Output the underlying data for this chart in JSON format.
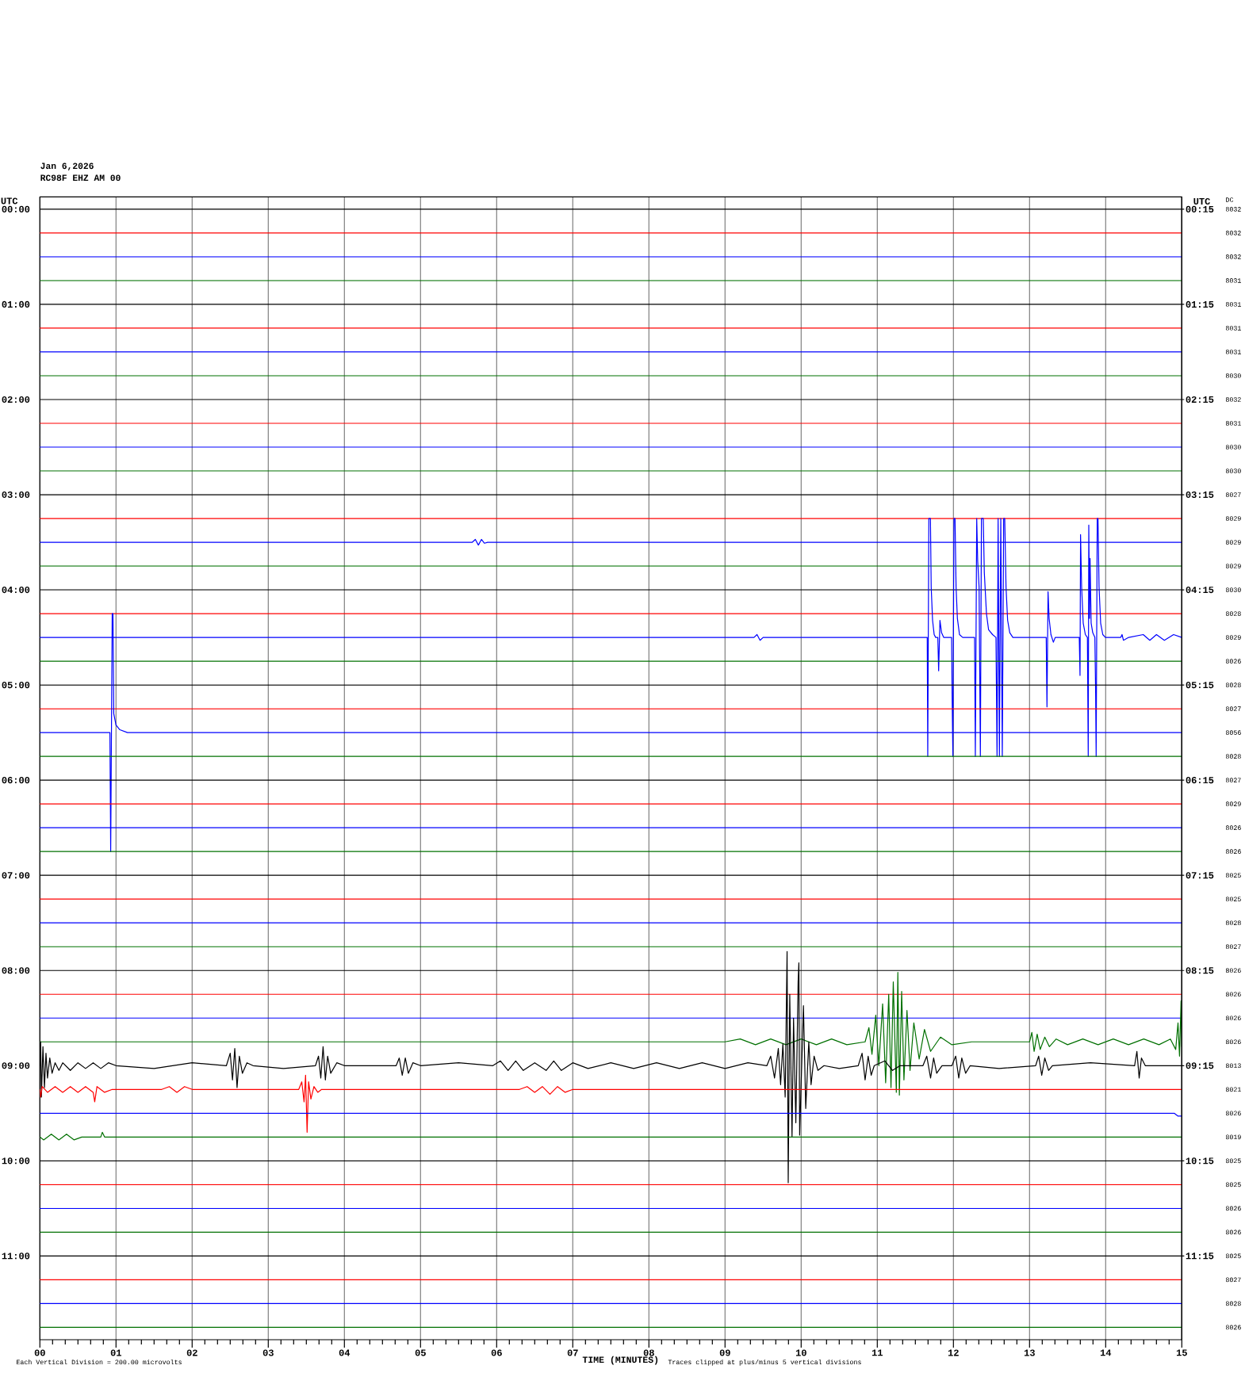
{
  "chart_data": {
    "type": "line",
    "title": "Jan 6,2026",
    "subtitle": "RC98F EHZ AM 00",
    "xlabel": "TIME (MINUTES)",
    "ylabel": "UTC",
    "y2label": "UTC",
    "annotations": [
      "Each Vertical Division = 200.00 microvolts",
      "Traces clipped at plus/minus 5 vertical divisions",
      "DC"
    ],
    "grid": "x",
    "xlim": [
      0,
      15
    ],
    "xticks": [
      {
        "value": 0,
        "label": "00"
      },
      {
        "value": 1,
        "label": "01"
      },
      {
        "value": 2,
        "label": "02"
      },
      {
        "value": 3,
        "label": "03"
      },
      {
        "value": 4,
        "label": "04"
      },
      {
        "value": 5,
        "label": "05"
      },
      {
        "value": 6,
        "label": "06"
      },
      {
        "value": 7,
        "label": "07"
      },
      {
        "value": 8,
        "label": "08"
      },
      {
        "value": 9,
        "label": "09"
      },
      {
        "value": 10,
        "label": "10"
      },
      {
        "value": 11,
        "label": "11"
      },
      {
        "value": 12,
        "label": "12"
      },
      {
        "value": 13,
        "label": "13"
      },
      {
        "value": 14,
        "label": "14"
      },
      {
        "value": 15,
        "label": "15"
      }
    ],
    "ylim": [
      11.88,
      -0.13
    ],
    "yticks": [
      {
        "value": 0,
        "label": "00:00"
      },
      {
        "value": 1,
        "label": "01:00"
      },
      {
        "value": 2,
        "label": "02:00"
      },
      {
        "value": 3,
        "label": "03:00"
      },
      {
        "value": 4,
        "label": "04:00"
      },
      {
        "value": 5,
        "label": "05:00"
      },
      {
        "value": 6,
        "label": "06:00"
      },
      {
        "value": 7,
        "label": "07:00"
      },
      {
        "value": 8,
        "label": "08:00"
      },
      {
        "value": 9,
        "label": "09:00"
      },
      {
        "value": 10,
        "label": "10:00"
      },
      {
        "value": 11,
        "label": "11:00"
      }
    ],
    "y2lim": [
      12.13,
      0.12
    ],
    "y2ticks": [
      {
        "value": 0.25,
        "label": "00:15"
      },
      {
        "value": 1.25,
        "label": "01:15"
      },
      {
        "value": 2.25,
        "label": "02:15"
      },
      {
        "value": 3.25,
        "label": "03:15"
      },
      {
        "value": 4.25,
        "label": "04:15"
      },
      {
        "value": 5.25,
        "label": "05:15"
      },
      {
        "value": 6.25,
        "label": "06:15"
      },
      {
        "value": 7.25,
        "label": "07:15"
      },
      {
        "value": 8.25,
        "label": "08:15"
      },
      {
        "value": 9.25,
        "label": "09:15"
      },
      {
        "value": 10.25,
        "label": "10:15"
      },
      {
        "value": 11.25,
        "label": "11:15"
      }
    ],
    "series": [
      {
        "name": "8032",
        "color": "#000000",
        "x": [
          0,
          15
        ],
        "values": [
          0,
          0
        ]
      },
      {
        "name": "8032",
        "color": "#ff0000",
        "x": [
          0,
          15
        ],
        "values": [
          0.25,
          0.25
        ]
      },
      {
        "name": "8032",
        "color": "#0000ff",
        "x": [
          0,
          15
        ],
        "values": [
          0.5,
          0.5
        ]
      },
      {
        "name": "8031",
        "color": "#007000",
        "x": [
          0,
          15
        ],
        "values": [
          0.75,
          0.75
        ]
      },
      {
        "name": "8031",
        "color": "#000000",
        "x": [
          0,
          15
        ],
        "values": [
          1,
          1
        ]
      },
      {
        "name": "8031",
        "color": "#ff0000",
        "x": [
          0,
          15
        ],
        "values": [
          1.25,
          1.25
        ]
      },
      {
        "name": "8031",
        "color": "#0000ff",
        "x": [
          0,
          15
        ],
        "values": [
          1.5,
          1.5
        ]
      },
      {
        "name": "8030",
        "color": "#007000",
        "x": [
          0,
          15
        ],
        "values": [
          1.75,
          1.75
        ]
      },
      {
        "name": "8032",
        "color": "#000000",
        "x": [
          0,
          15
        ],
        "values": [
          2,
          2
        ]
      },
      {
        "name": "8031",
        "color": "#ff0000",
        "x": [
          0,
          15
        ],
        "values": [
          2.25,
          2.25
        ]
      },
      {
        "name": "8030",
        "color": "#0000ff",
        "x": [
          0,
          15
        ],
        "values": [
          2.5,
          2.5
        ]
      },
      {
        "name": "8030",
        "color": "#007000",
        "x": [
          0,
          15
        ],
        "values": [
          2.75,
          2.75
        ]
      },
      {
        "name": "8027",
        "color": "#000000",
        "x": [
          0,
          15
        ],
        "values": [
          3,
          3
        ]
      },
      {
        "name": "8029",
        "color": "#ff0000",
        "x": [
          0,
          15
        ],
        "values": [
          3.25,
          3.25
        ]
      },
      {
        "name": "8029",
        "color": "#0000ff",
        "x": [
          0,
          5.68,
          5.72,
          5.76,
          5.8,
          5.84,
          5.88,
          15
        ],
        "values": [
          3.5,
          3.5,
          3.47,
          3.53,
          3.47,
          3.51,
          3.5,
          3.5
        ]
      },
      {
        "name": "8029",
        "color": "#007000",
        "x": [
          0,
          15
        ],
        "values": [
          3.75,
          3.75
        ]
      },
      {
        "name": "8030",
        "color": "#000000",
        "x": [
          0,
          15
        ],
        "values": [
          4,
          4
        ]
      },
      {
        "name": "8028",
        "color": "#ff0000",
        "x": [
          0,
          15
        ],
        "values": [
          4.25,
          4.25
        ]
      },
      {
        "name": "8029",
        "color": "#0000ff",
        "x": [
          0,
          9.38,
          9.42,
          9.46,
          9.5,
          11.656,
          11.663,
          11.677,
          11.698,
          11.708,
          11.726,
          11.747,
          11.767,
          11.795,
          11.806,
          11.823,
          11.844,
          11.872,
          11.976,
          11.983,
          11.993,
          12.007,
          12.021,
          12.035,
          12.052,
          12.08,
          12.122,
          12.278,
          12.288,
          12.306,
          12.319,
          12.337,
          12.354,
          12.368,
          12.392,
          12.406,
          12.434,
          12.462,
          12.514,
          12.559,
          12.573,
          12.587,
          12.604,
          12.622,
          12.642,
          12.66,
          12.674,
          12.691,
          12.712,
          12.74,
          12.781,
          12.844,
          13.219,
          13.229,
          13.243,
          13.257,
          13.281,
          13.313,
          13.337,
          13.653,
          13.663,
          13.67,
          13.684,
          13.705,
          13.733,
          13.76,
          13.771,
          13.778,
          13.788,
          13.795,
          13.809,
          13.83,
          13.858,
          13.868,
          13.875,
          13.889,
          13.899,
          13.913,
          13.934,
          13.962,
          13.997,
          14.198,
          14.215,
          14.233,
          14.302,
          14.493,
          14.58,
          14.667,
          14.771,
          14.892,
          15
        ],
        "values": [
          4.5,
          4.5,
          4.47,
          4.53,
          4.5,
          4.5,
          5.75,
          3.25,
          3.25,
          3.97,
          4.32,
          4.47,
          4.5,
          4.5,
          4.85,
          4.32,
          4.45,
          4.5,
          4.5,
          5.13,
          5.75,
          3.25,
          3.25,
          3.97,
          4.3,
          4.47,
          4.5,
          4.5,
          5.75,
          3.25,
          3.7,
          3.97,
          5.75,
          3.25,
          3.25,
          3.82,
          4.25,
          4.42,
          4.47,
          4.5,
          5.75,
          3.25,
          5.75,
          3.25,
          5.75,
          3.25,
          3.25,
          3.97,
          4.32,
          4.45,
          4.5,
          4.5,
          4.5,
          5.23,
          4.02,
          4.3,
          4.47,
          4.55,
          4.5,
          4.5,
          4.9,
          3.42,
          3.97,
          4.35,
          4.47,
          4.5,
          5.75,
          3.32,
          4.3,
          3.67,
          4.35,
          4.45,
          4.5,
          5.08,
          5.75,
          3.25,
          3.25,
          3.97,
          4.35,
          4.47,
          4.5,
          4.5,
          4.47,
          4.53,
          4.5,
          4.47,
          4.53,
          4.47,
          4.53,
          4.47,
          4.5
        ]
      },
      {
        "name": "8026",
        "color": "#007000",
        "x": [
          0,
          15
        ],
        "values": [
          4.75,
          4.75
        ]
      },
      {
        "name": "8028",
        "color": "#000000",
        "x": [
          0,
          15
        ],
        "values": [
          5,
          5
        ]
      },
      {
        "name": "8027",
        "color": "#ff0000",
        "x": [
          0,
          15
        ],
        "values": [
          5.25,
          5.25
        ]
      },
      {
        "name": "8056",
        "color": "#0000ff",
        "x": [
          0,
          0.92,
          0.93,
          0.95,
          0.96,
          0.97,
          1.0,
          1.05,
          1.15,
          15
        ],
        "values": [
          5.5,
          5.5,
          6.75,
          4.25,
          4.25,
          5.3,
          5.42,
          5.47,
          5.5,
          5.5
        ]
      },
      {
        "name": "8028",
        "color": "#007000",
        "x": [
          0,
          15
        ],
        "values": [
          5.75,
          5.75
        ]
      },
      {
        "name": "8027",
        "color": "#000000",
        "x": [
          0,
          15
        ],
        "values": [
          6,
          6
        ]
      },
      {
        "name": "8029",
        "color": "#ff0000",
        "x": [
          0,
          15
        ],
        "values": [
          6.25,
          6.25
        ]
      },
      {
        "name": "8026",
        "color": "#0000ff",
        "x": [
          0,
          15
        ],
        "values": [
          6.5,
          6.5
        ]
      },
      {
        "name": "8026",
        "color": "#007000",
        "x": [
          0,
          15
        ],
        "values": [
          6.75,
          6.75
        ]
      },
      {
        "name": "8025",
        "color": "#000000",
        "x": [
          0,
          15
        ],
        "values": [
          7,
          7
        ]
      },
      {
        "name": "8025",
        "color": "#ff0000",
        "x": [
          0,
          15
        ],
        "values": [
          7.25,
          7.25
        ]
      },
      {
        "name": "8028",
        "color": "#0000ff",
        "x": [
          0,
          15
        ],
        "values": [
          7.5,
          7.5
        ]
      },
      {
        "name": "8027",
        "color": "#007000",
        "x": [
          0,
          15
        ],
        "values": [
          7.75,
          7.75
        ]
      },
      {
        "name": "8026",
        "color": "#000000",
        "x": [
          0,
          15
        ],
        "values": [
          8,
          8
        ]
      },
      {
        "name": "8026",
        "color": "#ff0000",
        "x": [
          0,
          15
        ],
        "values": [
          8.25,
          8.25
        ]
      },
      {
        "name": "8026",
        "color": "#0000ff",
        "x": [
          0,
          15
        ],
        "values": [
          8.5,
          8.5
        ]
      },
      {
        "name": "8026",
        "color": "#007000",
        "x": [
          0,
          9.0,
          9.2,
          9.4,
          9.6,
          9.8,
          10.0,
          10.2,
          10.4,
          10.6,
          10.84,
          10.89,
          10.93,
          10.98,
          11.02,
          11.07,
          11.11,
          11.15,
          11.18,
          11.21,
          11.25,
          11.27,
          11.29,
          11.32,
          11.35,
          11.39,
          11.43,
          11.48,
          11.55,
          11.62,
          11.7,
          11.83,
          11.98,
          12.24,
          13.0,
          13.03,
          13.06,
          13.1,
          13.14,
          13.2,
          13.26,
          13.35,
          13.5,
          13.7,
          13.9,
          14.1,
          14.3,
          14.5,
          14.7,
          14.85,
          14.92,
          14.95,
          14.97,
          14.99,
          15
        ],
        "values": [
          8.75,
          8.75,
          8.72,
          8.78,
          8.72,
          8.78,
          8.72,
          8.78,
          8.72,
          8.78,
          8.75,
          8.6,
          8.88,
          8.47,
          9.0,
          8.35,
          9.18,
          8.25,
          9.23,
          8.12,
          9.28,
          8.02,
          9.31,
          8.22,
          9.15,
          8.42,
          9.05,
          8.55,
          8.93,
          8.62,
          8.85,
          8.7,
          8.78,
          8.75,
          8.75,
          8.65,
          8.85,
          8.67,
          8.83,
          8.7,
          8.8,
          8.72,
          8.78,
          8.72,
          8.78,
          8.72,
          8.78,
          8.72,
          8.78,
          8.72,
          8.83,
          8.55,
          8.9,
          8.32,
          8.8
        ]
      },
      {
        "name": "8013",
        "color": "#000000",
        "x": [
          0,
          0.01,
          0.02,
          0.04,
          0.06,
          0.08,
          0.1,
          0.13,
          0.16,
          0.2,
          0.25,
          0.3,
          0.4,
          0.5,
          0.6,
          0.7,
          0.8,
          0.9,
          1.0,
          1.5,
          2.0,
          2.45,
          2.5,
          2.53,
          2.56,
          2.59,
          2.62,
          2.66,
          2.72,
          2.8,
          3.2,
          3.62,
          3.66,
          3.69,
          3.72,
          3.75,
          3.78,
          3.82,
          3.9,
          4.0,
          4.68,
          4.72,
          4.76,
          4.8,
          4.84,
          4.9,
          5.0,
          5.5,
          5.95,
          6.05,
          6.15,
          6.25,
          6.35,
          6.5,
          6.65,
          6.75,
          6.85,
          7.0,
          7.2,
          7.5,
          7.8,
          8.1,
          8.4,
          8.7,
          9.0,
          9.3,
          9.55,
          9.6,
          9.65,
          9.7,
          9.73,
          9.76,
          9.79,
          9.815,
          9.83,
          9.85,
          9.88,
          9.9,
          9.93,
          9.96,
          9.97,
          9.98,
          10.03,
          10.06,
          10.1,
          10.13,
          10.17,
          10.22,
          10.3,
          10.5,
          10.75,
          10.8,
          10.84,
          10.88,
          10.92,
          10.96,
          11.1,
          11.2,
          11.3,
          11.6,
          11.65,
          11.7,
          11.74,
          11.78,
          11.85,
          11.98,
          12.03,
          12.07,
          12.11,
          12.16,
          12.22,
          12.6,
          13.08,
          13.12,
          13.16,
          13.2,
          13.25,
          13.3,
          13.8,
          14.38,
          14.41,
          14.44,
          14.47,
          14.52,
          15
        ],
        "values": [
          9,
          8.75,
          9.33,
          8.8,
          9.23,
          8.87,
          9.13,
          8.92,
          9.08,
          8.97,
          9.05,
          8.97,
          9.05,
          8.97,
          9.03,
          8.97,
          9.03,
          8.97,
          9,
          9.03,
          8.97,
          9,
          8.87,
          9.15,
          8.82,
          9.23,
          8.9,
          9.08,
          8.97,
          9,
          9.03,
          9,
          8.9,
          9.13,
          8.8,
          9.15,
          8.9,
          9.08,
          8.97,
          9,
          9,
          8.92,
          9.1,
          8.92,
          9.08,
          8.97,
          9,
          8.97,
          9,
          8.95,
          9.05,
          8.95,
          9.05,
          8.97,
          9.05,
          8.95,
          9.05,
          8.97,
          9.03,
          8.97,
          9.03,
          8.97,
          9.03,
          8.97,
          9.03,
          8.97,
          9,
          8.9,
          9.13,
          8.82,
          9.2,
          8.77,
          9.33,
          7.8,
          10.23,
          8.25,
          9.75,
          8.5,
          9.6,
          8.12,
          7.92,
          9.73,
          8.37,
          9.45,
          8.75,
          9.2,
          8.9,
          9.05,
          9,
          9.03,
          9,
          8.87,
          9.15,
          8.9,
          9.1,
          9,
          8.95,
          9.05,
          9,
          9,
          8.9,
          9.13,
          8.92,
          9.08,
          9,
          9,
          8.9,
          9.13,
          8.92,
          9.08,
          9,
          9.03,
          9,
          8.9,
          9.1,
          8.92,
          9.05,
          9,
          8.97,
          9,
          8.85,
          9.13,
          8.92,
          9,
          9
        ]
      },
      {
        "name": "8021",
        "color": "#ff0000",
        "x": [
          0,
          0.01,
          0.03,
          0.1,
          0.2,
          0.3,
          0.4,
          0.5,
          0.6,
          0.7,
          0.72,
          0.75,
          0.85,
          0.95,
          1.6,
          1.7,
          1.8,
          1.9,
          2.0,
          3.4,
          3.44,
          3.47,
          3.49,
          3.51,
          3.53,
          3.56,
          3.6,
          3.65,
          3.7,
          6.3,
          6.4,
          6.5,
          6.6,
          6.7,
          6.8,
          6.9,
          7.0,
          15
        ],
        "values": [
          9.25,
          9.33,
          9.22,
          9.28,
          9.22,
          9.28,
          9.22,
          9.28,
          9.22,
          9.28,
          9.38,
          9.22,
          9.28,
          9.25,
          9.25,
          9.22,
          9.28,
          9.22,
          9.25,
          9.25,
          9.17,
          9.38,
          9.1,
          9.7,
          9.17,
          9.35,
          9.22,
          9.28,
          9.25,
          9.25,
          9.22,
          9.28,
          9.22,
          9.3,
          9.22,
          9.28,
          9.25,
          9.25
        ]
      },
      {
        "name": "8026",
        "color": "#0000ff",
        "x": [
          0,
          14.9,
          14.95,
          15
        ],
        "values": [
          9.5,
          9.5,
          9.53,
          9.53
        ]
      },
      {
        "name": "8019",
        "color": "#007000",
        "x": [
          0,
          0.05,
          0.15,
          0.25,
          0.35,
          0.45,
          0.55,
          0.8,
          0.82,
          0.85,
          15
        ],
        "values": [
          9.75,
          9.78,
          9.72,
          9.78,
          9.72,
          9.78,
          9.75,
          9.75,
          9.7,
          9.75,
          9.75
        ]
      },
      {
        "name": "8025",
        "color": "#000000",
        "x": [
          0,
          15
        ],
        "values": [
          10,
          10
        ]
      },
      {
        "name": "8025",
        "color": "#ff0000",
        "x": [
          0,
          15
        ],
        "values": [
          10.25,
          10.25
        ]
      },
      {
        "name": "8026",
        "color": "#0000ff",
        "x": [
          0,
          15
        ],
        "values": [
          10.5,
          10.5
        ]
      },
      {
        "name": "8026",
        "color": "#007000",
        "x": [
          0,
          15
        ],
        "values": [
          10.75,
          10.75
        ]
      },
      {
        "name": "8025",
        "color": "#000000",
        "x": [
          0,
          15
        ],
        "values": [
          11,
          11
        ]
      },
      {
        "name": "8027",
        "color": "#ff0000",
        "x": [
          0,
          15
        ],
        "values": [
          11.25,
          11.25
        ]
      },
      {
        "name": "8028",
        "color": "#0000ff",
        "x": [
          0,
          15
        ],
        "values": [
          11.5,
          11.5
        ]
      },
      {
        "name": "8026",
        "color": "#007000",
        "x": [
          0,
          15
        ],
        "values": [
          11.75,
          11.75
        ]
      }
    ]
  }
}
